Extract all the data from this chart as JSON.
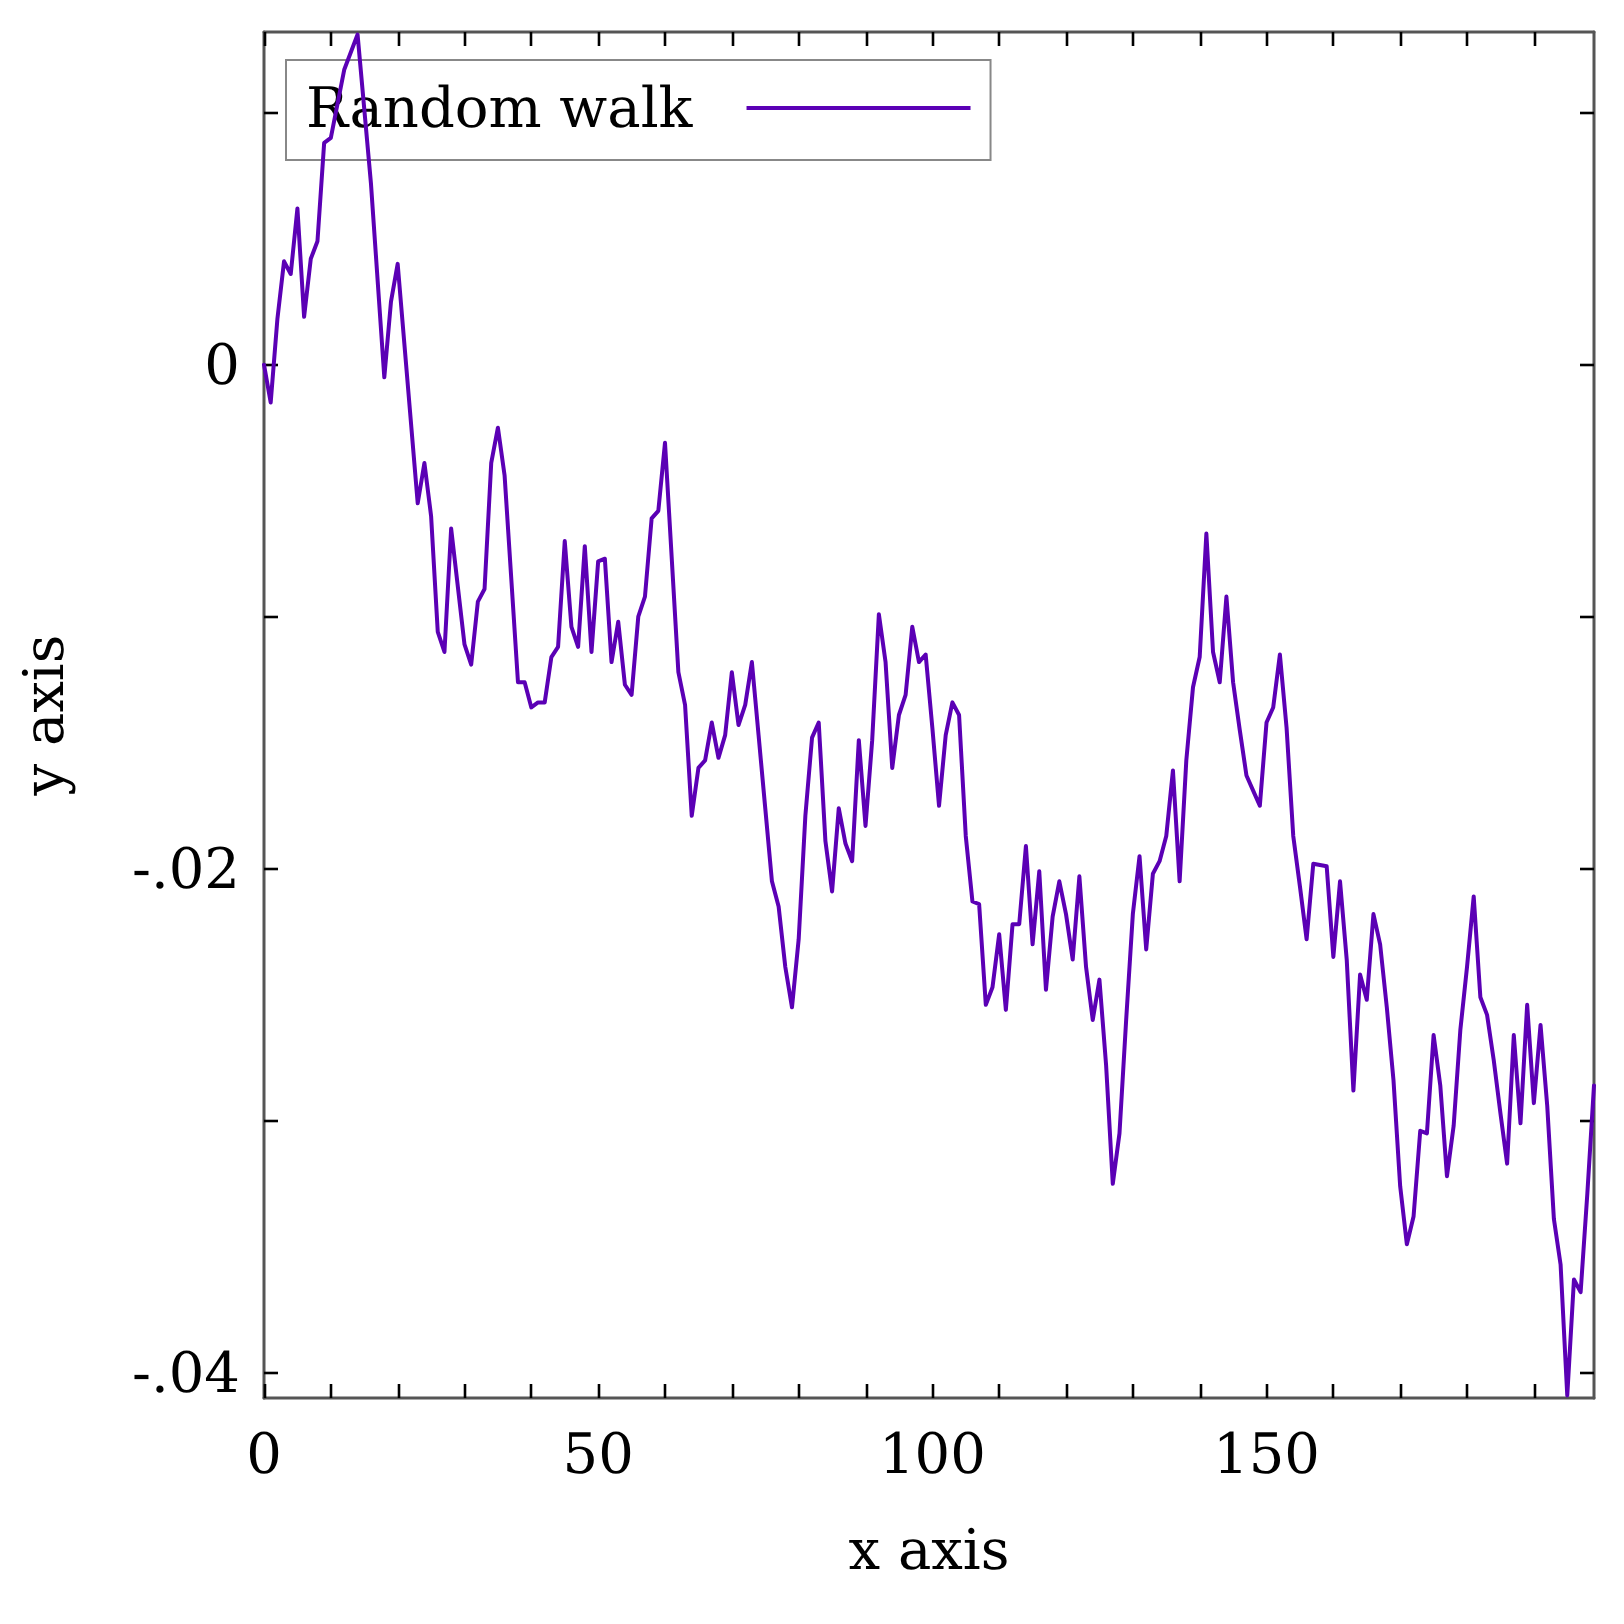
{
  "chart_data": {
    "type": "line",
    "xlabel": "x axis",
    "ylabel": "y axis",
    "xlim": [
      0,
      199
    ],
    "ylim": [
      -0.041,
      0.0132
    ],
    "xticks": [
      0,
      {
        "value": 10,
        "label": null
      },
      {
        "value": 20,
        "label": null
      },
      {
        "value": 30,
        "label": null
      },
      {
        "value": 40,
        "label": null
      },
      50,
      {
        "value": 60,
        "label": null
      },
      {
        "value": 70,
        "label": null
      },
      {
        "value": 80,
        "label": null
      },
      {
        "value": 90,
        "label": null
      },
      100,
      {
        "value": 110,
        "label": null
      },
      {
        "value": 120,
        "label": null
      },
      {
        "value": 130,
        "label": null
      },
      {
        "value": 140,
        "label": null
      },
      150,
      {
        "value": 160,
        "label": null
      },
      {
        "value": 170,
        "label": null
      },
      {
        "value": 180,
        "label": null
      },
      {
        "value": 190,
        "label": null
      }
    ],
    "yticks": [
      {
        "value": -0.04,
        "label": "-.04"
      },
      {
        "value": -0.03,
        "label": null
      },
      {
        "value": -0.02,
        "label": "-.02"
      },
      {
        "value": -0.01,
        "label": null
      },
      0,
      {
        "value": 0.01,
        "label": null
      }
    ],
    "legend": "top left",
    "grid": false,
    "marker": "none",
    "line_style": "solid",
    "series": [
      {
        "name": "Random walk",
        "color": "#5b00b5",
        "x": [
          0,
          1,
          2,
          3,
          4,
          5,
          6,
          7,
          8,
          9,
          10,
          12,
          14,
          16,
          18,
          19,
          20,
          23,
          24,
          25,
          26,
          27,
          28,
          30,
          31,
          32,
          33,
          34,
          35,
          36,
          38,
          39,
          40,
          41,
          42,
          43,
          44,
          45,
          46,
          47,
          48,
          49,
          50,
          51,
          52,
          53,
          54,
          55,
          56,
          57,
          58,
          59,
          60,
          62,
          63,
          64,
          65,
          66,
          67,
          68,
          69,
          70,
          71,
          72,
          73,
          74,
          75,
          76,
          77,
          78,
          79,
          80,
          81,
          82,
          83,
          84,
          85,
          86,
          87,
          88,
          89,
          90,
          91,
          92,
          93,
          94,
          95,
          96,
          97,
          98,
          99,
          100,
          101,
          102,
          103,
          104,
          105,
          106,
          107,
          108,
          109,
          110,
          111,
          112,
          113,
          114,
          115,
          116,
          117,
          118,
          119,
          120,
          121,
          122,
          123,
          124,
          125,
          126,
          127,
          128,
          129,
          130,
          131,
          132,
          133,
          134,
          135,
          136,
          137,
          138,
          139,
          140,
          141,
          142,
          143,
          144,
          145,
          146,
          147,
          148,
          149,
          150,
          151,
          152,
          153,
          154,
          155,
          156,
          157,
          159,
          160,
          161,
          162,
          163,
          164,
          165,
          166,
          167,
          168,
          169,
          170,
          171,
          172,
          173,
          174,
          175,
          176,
          177,
          178,
          179,
          180,
          181,
          182,
          183,
          184,
          185,
          186,
          187,
          188,
          189,
          190,
          191,
          192,
          193,
          194,
          195,
          196,
          197,
          198,
          199
        ],
        "values": [
          0,
          -0.0015,
          0.0018,
          0.0041,
          0.0036,
          0.0062,
          0.0019,
          0.0042,
          0.0049,
          0.0088,
          0.009,
          0.0117,
          0.0131,
          0.0072,
          -0.0005,
          0.0025,
          0.004,
          -0.0055,
          -0.0039,
          -0.006,
          -0.0106,
          -0.0114,
          -0.0065,
          -0.0111,
          -0.0119,
          -0.0094,
          -0.0089,
          -0.0039,
          -0.0025,
          -0.0044,
          -0.0126,
          -0.0126,
          -0.0136,
          -0.0134,
          -0.0134,
          -0.0116,
          -0.0112,
          -0.007,
          -0.0104,
          -0.0112,
          -0.0072,
          -0.0114,
          -0.0078,
          -0.0077,
          -0.0118,
          -0.0102,
          -0.0127,
          -0.0131,
          -0.01,
          -0.0092,
          -0.0061,
          -0.0058,
          -0.0031,
          -0.0122,
          -0.0135,
          -0.0179,
          -0.016,
          -0.0157,
          -0.0142,
          -0.0156,
          -0.0147,
          -0.0122,
          -0.0143,
          -0.0135,
          -0.0118,
          -0.0147,
          -0.0176,
          -0.0205,
          -0.0215,
          -0.0239,
          -0.0255,
          -0.0228,
          -0.0179,
          -0.0148,
          -0.0142,
          -0.0189,
          -0.0209,
          -0.0176,
          -0.019,
          -0.0197,
          -0.0149,
          -0.0183,
          -0.0149,
          -0.0099,
          -0.0118,
          -0.016,
          -0.0139,
          -0.0131,
          -0.0104,
          -0.0118,
          -0.0115,
          -0.0144,
          -0.0175,
          -0.0147,
          -0.0134,
          -0.0139,
          -0.0187,
          -0.0213,
          -0.0214,
          -0.0254,
          -0.0247,
          -0.0226,
          -0.0256,
          -0.0222,
          -0.0222,
          -0.0191,
          -0.023,
          -0.0201,
          -0.0248,
          -0.0219,
          -0.0205,
          -0.0218,
          -0.0236,
          -0.0203,
          -0.0239,
          -0.026,
          -0.0244,
          -0.0278,
          -0.0325,
          -0.0305,
          -0.026,
          -0.0218,
          -0.0195,
          -0.0232,
          -0.0202,
          -0.0197,
          -0.0187,
          -0.0161,
          -0.0205,
          -0.0157,
          -0.0128,
          -0.0116,
          -0.0067,
          -0.0114,
          -0.0126,
          -0.0092,
          -0.0126,
          -0.0145,
          -0.0163,
          -0.0169,
          -0.0175,
          -0.0142,
          -0.0136,
          -0.0115,
          -0.0144,
          -0.0187,
          -0.0207,
          -0.0228,
          -0.0198,
          -0.0199,
          -0.0235,
          -0.0205,
          -0.0236,
          -0.0288,
          -0.0242,
          -0.0252,
          -0.0218,
          -0.023,
          -0.0255,
          -0.0284,
          -0.0326,
          -0.0349,
          -0.0338,
          -0.0304,
          -0.0305,
          -0.0266,
          -0.0286,
          -0.0322,
          -0.0302,
          -0.0264,
          -0.0239,
          -0.0211,
          -0.0251,
          -0.0258,
          -0.0276,
          -0.0297,
          -0.0317,
          -0.0266,
          -0.0301,
          -0.0254,
          -0.0293,
          -0.0262,
          -0.0294,
          -0.0339,
          -0.0357,
          -0.0409,
          -0.0363,
          -0.0368,
          -0.0329,
          -0.0286
        ]
      }
    ]
  }
}
